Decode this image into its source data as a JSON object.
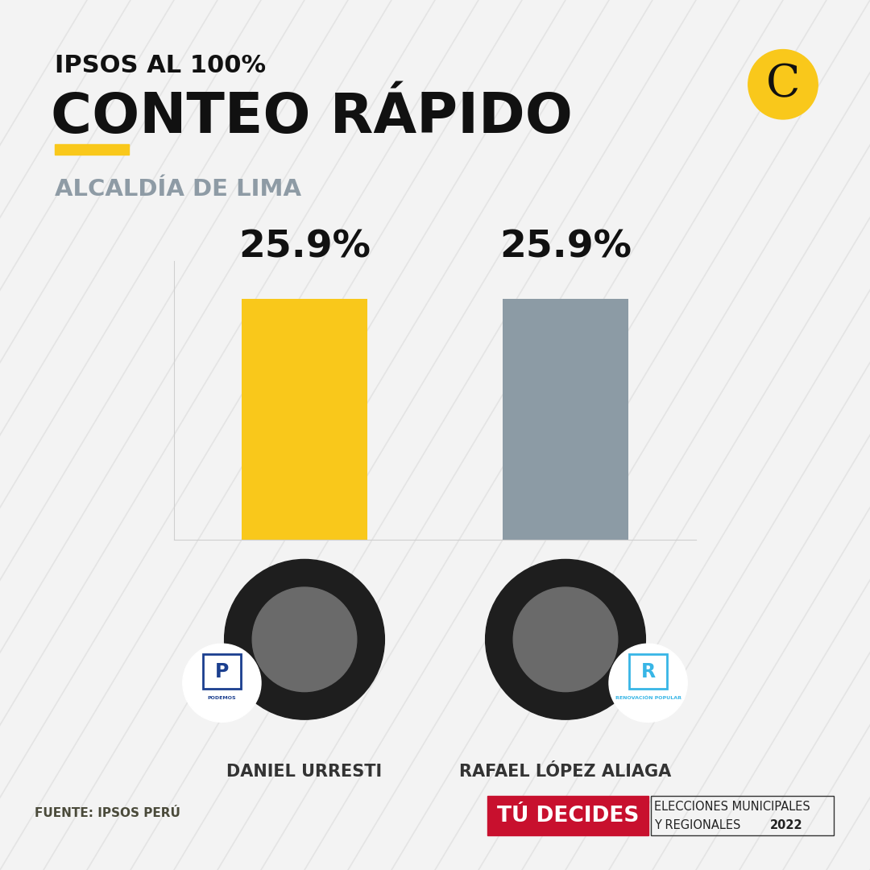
{
  "chart_data": {
    "type": "bar",
    "kicker": "IPSOS AL 100%",
    "title": "CONTEO RÁPIDO",
    "subtitle": "ALCALDÍA DE LIMA",
    "categories": [
      "DANIEL URRESTI",
      "RAFAEL LÓPEZ ALIAGA"
    ],
    "values": [
      25.9,
      25.9
    ],
    "value_labels": [
      "25.9%",
      "25.9%"
    ],
    "colors": [
      "#f9c81b",
      "#8c9ba5"
    ],
    "parties": [
      "PODEMOS",
      "RENOVACIÓN POPULAR"
    ],
    "party_initials": [
      "P",
      "R"
    ],
    "ylim": [
      0,
      30
    ],
    "yticks": [],
    "data_labels": true,
    "tick_labels": false,
    "grid": false,
    "logo": "C",
    "source": "FUENTE: IPSOS PERÚ",
    "footer": {
      "brand": "TÚ DECIDES",
      "line1": "ELECCIONES MUNICIPALES",
      "line2": "Y REGIONALES",
      "year": "2022"
    }
  }
}
